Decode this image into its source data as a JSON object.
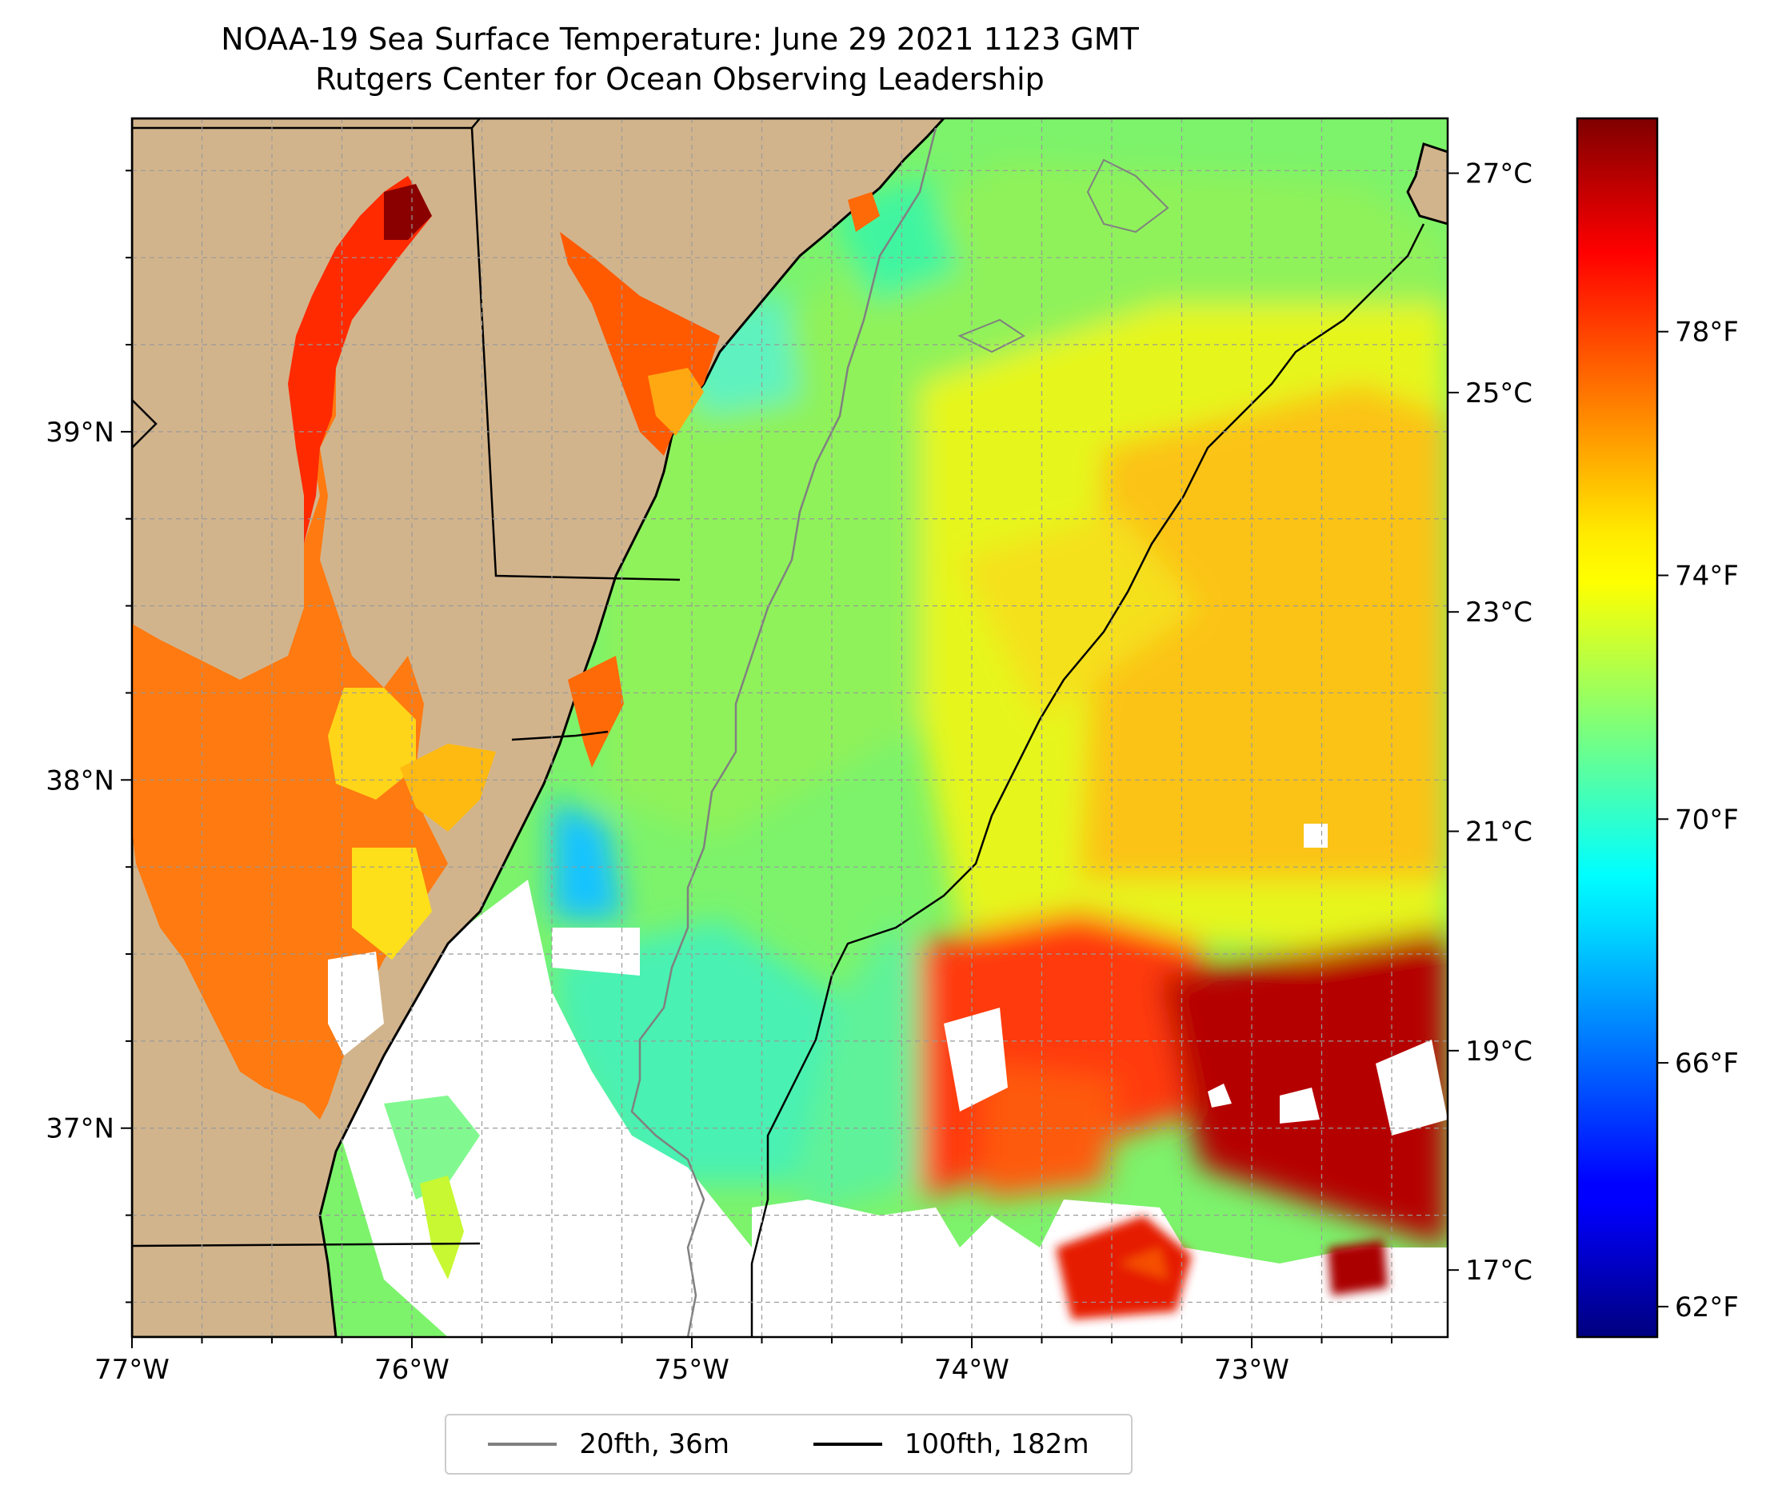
{
  "title": {
    "line1": "NOAA-19 Sea Surface Temperature: June 29 2021 1123 GMT",
    "line2": "Rutgers Center for Ocean Observing Leadership"
  },
  "map": {
    "lon_range": [
      -77.0,
      -72.3
    ],
    "lat_range": [
      36.4,
      39.9
    ],
    "lon_ticks": [
      {
        "value": -77,
        "label": "77°W"
      },
      {
        "value": -76,
        "label": "76°W"
      },
      {
        "value": -75,
        "label": "75°W"
      },
      {
        "value": -74,
        "label": "74°W"
      },
      {
        "value": -73,
        "label": "73°W"
      }
    ],
    "lat_ticks": [
      {
        "value": 39,
        "label": "39°N"
      },
      {
        "value": 38,
        "label": "38°N"
      },
      {
        "value": 37,
        "label": "37°N"
      }
    ],
    "gridlines": true,
    "land_color": "#d2b48c",
    "colormap": "jet"
  },
  "colorbar": {
    "range_f": [
      61.5,
      81.5
    ],
    "celsius_ticks": [
      {
        "value": 17,
        "label": "17°C"
      },
      {
        "value": 19,
        "label": "19°C"
      },
      {
        "value": 21,
        "label": "21°C"
      },
      {
        "value": 23,
        "label": "23°C"
      },
      {
        "value": 25,
        "label": "25°C"
      },
      {
        "value": 27,
        "label": "27°C"
      }
    ],
    "fahrenheit_ticks": [
      {
        "value": 62,
        "label": "62°F"
      },
      {
        "value": 66,
        "label": "66°F"
      },
      {
        "value": 70,
        "label": "70°F"
      },
      {
        "value": 74,
        "label": "74°F"
      },
      {
        "value": 78,
        "label": "78°F"
      }
    ]
  },
  "legend": {
    "items": [
      {
        "label": "20fth, 36m",
        "color": "#808080"
      },
      {
        "label": "100fth, 182m",
        "color": "#000000"
      }
    ]
  }
}
